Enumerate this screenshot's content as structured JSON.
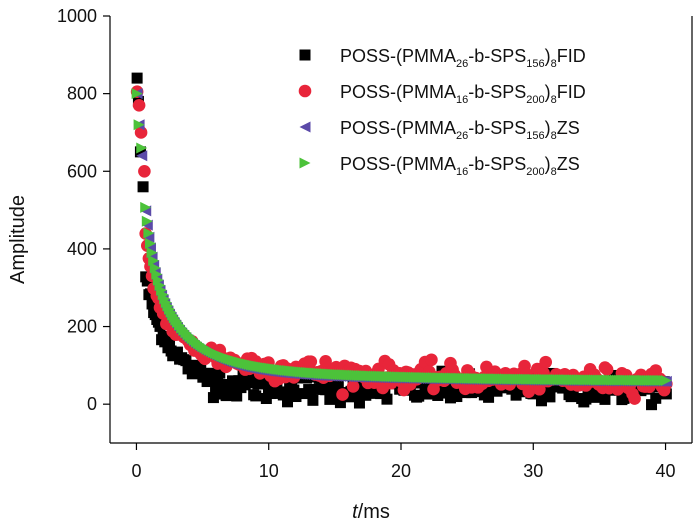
{
  "chart_data": {
    "type": "scatter",
    "title": "",
    "xlabel_italic": "t",
    "xlabel_unit": "/ms",
    "ylabel": "Amplitude",
    "xlim": [
      -2,
      42
    ],
    "ylim": [
      -100,
      1000
    ],
    "xticks": [
      0,
      10,
      20,
      30,
      40
    ],
    "yticks": [
      0,
      200,
      400,
      600,
      800,
      1000
    ],
    "legend_position": "top-right",
    "series": [
      {
        "name": "POSS-(PMMA26-b-SPS156)8FID",
        "legend_parts": [
          {
            "t": "POSS-(PMMA",
            "sub": false
          },
          {
            "t": "26",
            "sub": true
          },
          {
            "t": "-b-SPS",
            "sub": false
          },
          {
            "t": "156",
            "sub": true
          },
          {
            "t": ")",
            "sub": false
          },
          {
            "t": "8",
            "sub": true
          },
          {
            "t": "FID",
            "sub": false
          }
        ],
        "marker": "square",
        "color": "#000000",
        "model": {
          "a0": 30,
          "a1": 300,
          "t1": 0.3,
          "a2": 340,
          "t2": 2.2,
          "c": 40
        },
        "noise": 18,
        "points": [
          [
            0.05,
            840
          ],
          [
            0.15,
            780
          ],
          [
            0.3,
            650
          ],
          [
            0.5,
            560
          ]
        ]
      },
      {
        "name": "POSS-(PMMA16-b-SPS200)8FID",
        "legend_parts": [
          {
            "t": "POSS-(PMMA",
            "sub": false
          },
          {
            "t": "16",
            "sub": true
          },
          {
            "t": "-b-SPS",
            "sub": false
          },
          {
            "t": "200",
            "sub": true
          },
          {
            "t": ")",
            "sub": false
          },
          {
            "t": "8",
            "sub": true
          },
          {
            "t": "FID",
            "sub": false
          }
        ],
        "marker": "circle",
        "color": "#e8253a",
        "model": {
          "a0": 260,
          "a1": 250,
          "t1": 0.35,
          "a2": 180,
          "t2": 2.8,
          "c2": 70,
          "tc": 15,
          "c": 55
        },
        "noise": 16,
        "points": [
          [
            0.05,
            805
          ],
          [
            0.2,
            770
          ],
          [
            0.35,
            700
          ],
          [
            0.6,
            600
          ]
        ]
      },
      {
        "name": "POSS-(PMMA26-b-SPS156)8ZS",
        "legend_parts": [
          {
            "t": "POSS-(PMMA",
            "sub": false
          },
          {
            "t": "26",
            "sub": true
          },
          {
            "t": "-b-SPS",
            "sub": false
          },
          {
            "t": "156",
            "sub": true
          },
          {
            "t": ")",
            "sub": false
          },
          {
            "t": "8",
            "sub": true
          },
          {
            "t": "ZS",
            "sub": false
          }
        ],
        "marker": "triangle-left",
        "color": "#5b4aa8",
        "model": {
          "a0": 290,
          "a1": 250,
          "t1": 0.4,
          "a2": 280,
          "t2": 3.0,
          "c2": 35,
          "tc": 18,
          "c": 55
        },
        "noise": 0,
        "points": [
          [
            0.05,
            800
          ],
          [
            0.2,
            720
          ],
          [
            0.4,
            640
          ]
        ]
      },
      {
        "name": "POSS-(PMMA16-b-SPS200)8ZS",
        "legend_parts": [
          {
            "t": "POSS-(PMMA",
            "sub": false
          },
          {
            "t": "16",
            "sub": true
          },
          {
            "t": "-b-SPS",
            "sub": false
          },
          {
            "t": "200",
            "sub": true
          },
          {
            "t": ")",
            "sub": false
          },
          {
            "t": "8",
            "sub": true
          },
          {
            "t": "ZS",
            "sub": false
          }
        ],
        "marker": "triangle-right",
        "color": "#4cc23a",
        "model": {
          "a0": 300,
          "a1": 230,
          "t1": 0.4,
          "a2": 270,
          "t2": 3.2,
          "c2": 45,
          "tc": 15,
          "c": 58
        },
        "noise": 0,
        "points": [
          [
            0.05,
            800
          ],
          [
            0.2,
            720
          ],
          [
            0.4,
            660
          ]
        ]
      }
    ]
  }
}
